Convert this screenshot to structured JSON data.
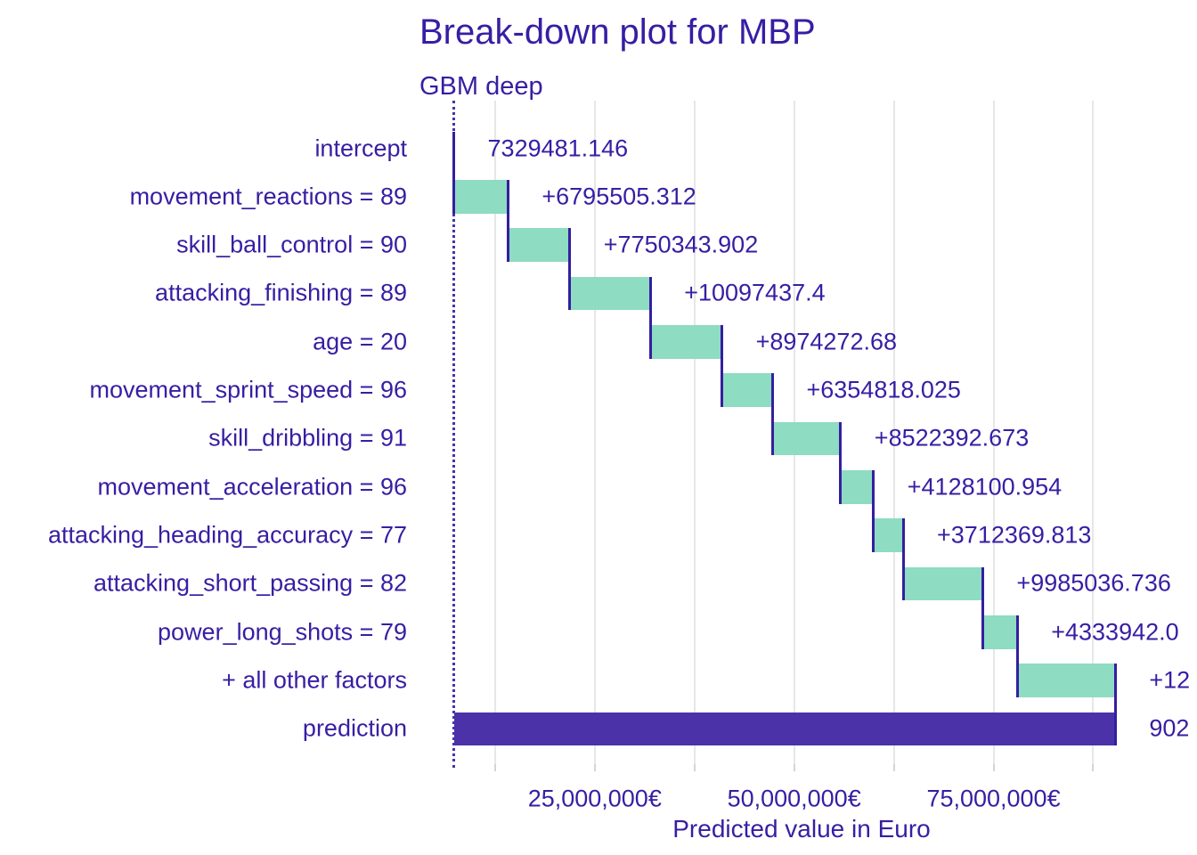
{
  "title": "Break-down plot for MBP",
  "subtitle": "GBM deep",
  "x_axis": {
    "title": "Predicted value in Euro",
    "major_ticks": [
      {
        "value": 25000000,
        "label": "25,000,000€"
      },
      {
        "value": 50000000,
        "label": "50,000,000€"
      },
      {
        "value": 75000000,
        "label": "75,000,000€"
      }
    ],
    "minor_ticks": [
      12500000,
      37500000,
      62500000,
      87500000
    ]
  },
  "chart_data": {
    "type": "bar",
    "subtype": "waterfall-breakdown",
    "title": "Break-down plot for MBP",
    "subtitle": "GBM deep",
    "xlabel": "Predicted value in Euro",
    "xlim": [
      7329481,
      92500000
    ],
    "grid": "vertical-only",
    "rows": [
      {
        "label": "intercept",
        "type": "intercept",
        "value": 7329481.146,
        "value_label": "7329481.146"
      },
      {
        "label": "movement_reactions = 89",
        "type": "contribution",
        "contribution": 6795505.312,
        "value_label": "+6795505.312"
      },
      {
        "label": "skill_ball_control = 90",
        "type": "contribution",
        "contribution": 7750343.902,
        "value_label": "+7750343.902"
      },
      {
        "label": "attacking_finishing = 89",
        "type": "contribution",
        "contribution": 10097437.4,
        "value_label": "+10097437.4"
      },
      {
        "label": "age = 20",
        "type": "contribution",
        "contribution": 8974272.68,
        "value_label": "+8974272.68"
      },
      {
        "label": "movement_sprint_speed = 96",
        "type": "contribution",
        "contribution": 6354818.025,
        "value_label": "+6354818.025"
      },
      {
        "label": "skill_dribbling = 91",
        "type": "contribution",
        "contribution": 8522392.673,
        "value_label": "+8522392.673"
      },
      {
        "label": "movement_acceleration = 96",
        "type": "contribution",
        "contribution": 4128100.954,
        "value_label": "+4128100.954"
      },
      {
        "label": "attacking_heading_accuracy = 77",
        "type": "contribution",
        "contribution": 3712369.813,
        "value_label": "+3712369.813"
      },
      {
        "label": "attacking_short_passing = 82",
        "type": "contribution",
        "contribution": 9985036.736,
        "value_label": "+9985036.736"
      },
      {
        "label": "power_long_shots = 79",
        "type": "contribution",
        "contribution": 4333942.0,
        "value_label": "+4333942.0",
        "value_label_truncated": true
      },
      {
        "label": "+ all other factors",
        "type": "contribution",
        "contribution": 12300000,
        "value_label": "+12",
        "value_label_truncated": true,
        "contribution_estimated": true
      },
      {
        "label": "prediction",
        "type": "prediction",
        "value_label": "902",
        "value_label_truncated": true
      }
    ]
  },
  "colors": {
    "positive_bar": "#8EDCC1",
    "final_bar": "#4B32A8",
    "connector_line": "#341FA0",
    "text": "#371EA3",
    "gridline": "#E7E7E7",
    "dotted_baseline": "#4B32A8",
    "background": "#FFFFFF"
  }
}
